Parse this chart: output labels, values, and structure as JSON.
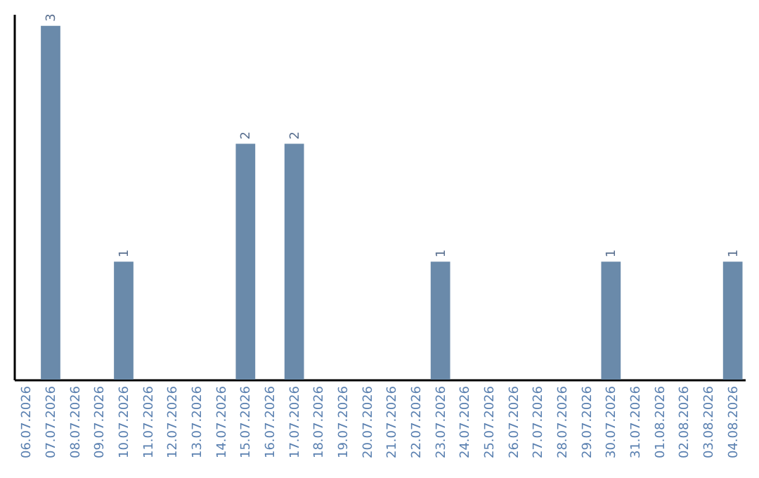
{
  "chart_data": {
    "type": "bar",
    "categories": [
      "06.07.2026",
      "07.07.2026",
      "08.07.2026",
      "09.07.2026",
      "10.07.2026",
      "11.07.2026",
      "12.07.2026",
      "13.07.2026",
      "14.07.2026",
      "15.07.2026",
      "16.07.2026",
      "17.07.2026",
      "18.07.2026",
      "19.07.2026",
      "20.07.2026",
      "21.07.2026",
      "22.07.2026",
      "23.07.2026",
      "24.07.2026",
      "25.07.2026",
      "26.07.2026",
      "27.07.2026",
      "28.07.2026",
      "29.07.2026",
      "30.07.2026",
      "31.07.2026",
      "01.08.2026",
      "02.08.2026",
      "03.08.2026",
      "04.08.2026"
    ],
    "values": [
      0,
      3,
      0,
      0,
      1,
      0,
      0,
      0,
      0,
      2,
      0,
      2,
      0,
      0,
      0,
      0,
      0,
      1,
      0,
      0,
      0,
      0,
      0,
      0,
      1,
      0,
      0,
      0,
      0,
      1
    ],
    "value_labels": [
      null,
      "3",
      null,
      null,
      "1",
      null,
      null,
      null,
      null,
      "2",
      null,
      "2",
      null,
      null,
      null,
      null,
      null,
      "1",
      null,
      null,
      null,
      null,
      null,
      null,
      "1",
      null,
      null,
      null,
      null,
      "1"
    ],
    "color": "#6a8aaa",
    "ylim": [
      0,
      3.1
    ],
    "tick_labels": "x",
    "grid": false
  }
}
